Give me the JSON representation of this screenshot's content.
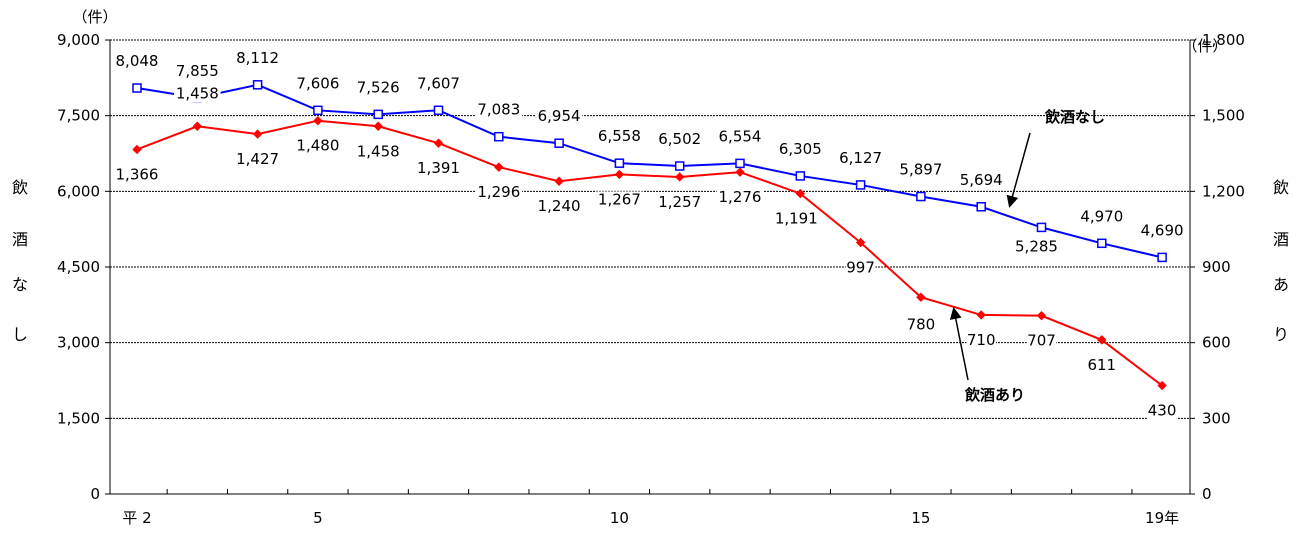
{
  "chart_data": {
    "type": "line",
    "title": "",
    "x": [
      "平 2",
      "3",
      "4",
      "5",
      "6",
      "7",
      "8",
      "9",
      "10",
      "11",
      "12",
      "13",
      "14",
      "15",
      "16",
      "17",
      "18",
      "19年"
    ],
    "x_tick_labels": [
      {
        "index": 0,
        "label": "平 2"
      },
      {
        "index": 3,
        "label": "5"
      },
      {
        "index": 8,
        "label": "10"
      },
      {
        "index": 13,
        "label": "15"
      },
      {
        "index": 17,
        "label": "19年"
      }
    ],
    "left_axis": {
      "unit": "（件）",
      "title_chars": [
        "飲",
        "酒",
        "な",
        "し"
      ],
      "ylim": [
        0,
        9000
      ],
      "ticks": [
        0,
        1500,
        3000,
        4500,
        6000,
        7500,
        9000
      ],
      "tick_labels": [
        "0",
        "1,500",
        "3,000",
        "4,500",
        "6,000",
        "7,500",
        "9,000"
      ]
    },
    "right_axis": {
      "unit": "（件）",
      "title_chars": [
        "飲",
        "酒",
        "あ",
        "り"
      ],
      "ylim": [
        0,
        1800
      ],
      "ticks": [
        0,
        300,
        600,
        900,
        1200,
        1500,
        1800
      ],
      "tick_labels": [
        "0",
        "300",
        "600",
        "900",
        "1,200",
        "1,500",
        "1,800"
      ]
    },
    "grid": true,
    "series": [
      {
        "name": "飲酒なし",
        "axis": "left",
        "color": "#0000ff",
        "marker": "square-open",
        "values": [
          8048,
          7855,
          8112,
          7606,
          7526,
          7607,
          7083,
          6954,
          6558,
          6502,
          6554,
          6305,
          6127,
          5897,
          5694,
          5285,
          4970,
          4690
        ],
        "labels": [
          "8,048",
          "7,855",
          "8,112",
          "7,606",
          "7,526",
          "7,607",
          "7,083",
          "6,954",
          "6,558",
          "6,502",
          "6,554",
          "6,305",
          "6,127",
          "5,897",
          "5,694",
          "5,285",
          "4,970",
          "4,690"
        ]
      },
      {
        "name": "飲酒あり",
        "axis": "right",
        "color": "#ff0000",
        "marker": "diamond-filled",
        "values": [
          1366,
          1458,
          1427,
          1480,
          1458,
          1391,
          1296,
          1240,
          1267,
          1257,
          1276,
          1191,
          997,
          780,
          710,
          707,
          611,
          430
        ],
        "labels": [
          "1,366",
          "1,458",
          "1,427",
          "1,480",
          "1,458",
          "1,391",
          "1,296",
          "1,240",
          "1,267",
          "1,257",
          "1,276",
          "1,191",
          "997",
          "780",
          "710",
          "707",
          "611",
          "430"
        ]
      }
    ],
    "annotations": [
      {
        "text": "飲酒なし",
        "points_to_series": "飲酒なし"
      },
      {
        "text": "飲酒あり",
        "points_to_series": "飲酒あり"
      }
    ]
  }
}
